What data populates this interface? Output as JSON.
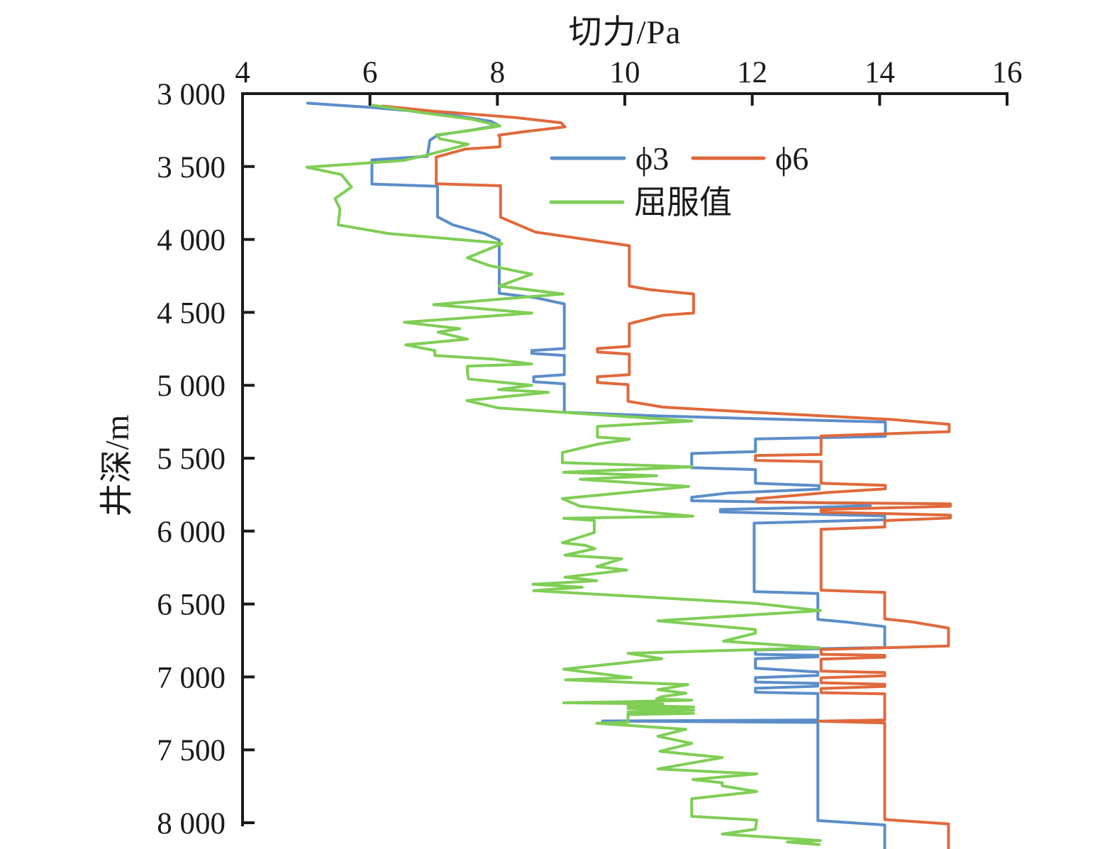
{
  "figure": {
    "title": "切力/Pa",
    "ylabel": "井深/m",
    "background": "#ffffff",
    "axis_color": "#1a1a1a"
  },
  "legend": {
    "items": [
      {
        "label": "ϕ3",
        "color": "#5B8EC9"
      },
      {
        "label": "ϕ6",
        "color": "#E0693C"
      },
      {
        "label": "屈服值",
        "color": "#7FCE55"
      }
    ]
  },
  "chart_data": {
    "type": "line",
    "title": "切力/Pa",
    "xlabel": "切力/Pa",
    "ylabel": "井深/m",
    "xlim": [
      4,
      16
    ],
    "ylim": [
      3000,
      8200
    ],
    "x_axis_position": "top",
    "y_inverted": true,
    "grid": false,
    "legend_position": "inside-top",
    "x_ticks": {
      "values": [
        4,
        6,
        8,
        10,
        12,
        14,
        16
      ],
      "labels": [
        "4",
        "6",
        "8",
        "10",
        "12",
        "14",
        "16"
      ]
    },
    "y_ticks": {
      "values": [
        3000,
        3500,
        4000,
        4500,
        5000,
        5500,
        6000,
        6500,
        7000,
        7500,
        8000
      ],
      "labels": [
        "3 000",
        "3 500",
        "4 000",
        "4 500",
        "5 000",
        "5 500",
        "6 000",
        "6 500",
        "7 000",
        "7 500",
        "8 000"
      ]
    },
    "series": [
      {
        "name": "ϕ3",
        "color": "#5B8EC9",
        "points_format": "[depth_m, shear_Pa]",
        "points": [
          [
            3065,
            5.02
          ],
          [
            3080,
            5.5
          ],
          [
            3095,
            6.03
          ],
          [
            3140,
            7.2
          ],
          [
            3190,
            7.9
          ],
          [
            3218,
            8.02
          ],
          [
            3250,
            7.6
          ],
          [
            3285,
            7.06
          ],
          [
            3320,
            6.94
          ],
          [
            3430,
            6.9
          ],
          [
            3455,
            6.03
          ],
          [
            3620,
            6.03
          ],
          [
            3635,
            7.06
          ],
          [
            3845,
            7.06
          ],
          [
            3900,
            7.3
          ],
          [
            3960,
            7.8
          ],
          [
            4005,
            8.03
          ],
          [
            4369,
            8.03
          ],
          [
            4400,
            8.6
          ],
          [
            4442,
            9.05
          ],
          [
            4748,
            9.05
          ],
          [
            4762,
            8.54
          ],
          [
            4781,
            8.54
          ],
          [
            4795,
            9.05
          ],
          [
            4927,
            9.05
          ],
          [
            4942,
            8.57
          ],
          [
            4976,
            8.57
          ],
          [
            4990,
            9.05
          ],
          [
            5185,
            9.05
          ],
          [
            5210,
            10.5
          ],
          [
            5240,
            13.0
          ],
          [
            5252,
            14.09
          ],
          [
            5350,
            14.09
          ],
          [
            5368,
            12.05
          ],
          [
            5455,
            12.05
          ],
          [
            5468,
            11.05
          ],
          [
            5565,
            11.05
          ],
          [
            5578,
            12.05
          ],
          [
            5672,
            12.05
          ],
          [
            5688,
            13.05
          ],
          [
            5712,
            13.05
          ],
          [
            5740,
            11.6
          ],
          [
            5768,
            11.05
          ],
          [
            5792,
            11.05
          ],
          [
            5812,
            13.85
          ],
          [
            5828,
            13.85
          ],
          [
            5852,
            11.5
          ],
          [
            5868,
            11.5
          ],
          [
            5896,
            14.08
          ],
          [
            5922,
            14.08
          ],
          [
            5945,
            12.03
          ],
          [
            6415,
            12.03
          ],
          [
            6428,
            13.03
          ],
          [
            6606,
            13.03
          ],
          [
            6625,
            13.5
          ],
          [
            6655,
            14.08
          ],
          [
            6798,
            14.08
          ],
          [
            6815,
            12.05
          ],
          [
            6845,
            12.05
          ],
          [
            6852,
            13.03
          ],
          [
            6862,
            13.03
          ],
          [
            6875,
            12.05
          ],
          [
            6940,
            12.05
          ],
          [
            6966,
            13.03
          ],
          [
            6990,
            13.03
          ],
          [
            7005,
            12.05
          ],
          [
            7035,
            12.05
          ],
          [
            7044,
            13.03
          ],
          [
            7063,
            13.03
          ],
          [
            7078,
            12.05
          ],
          [
            7105,
            12.05
          ],
          [
            7114,
            13.03
          ],
          [
            7140,
            13.03
          ],
          [
            7295,
            13.03
          ],
          [
            7302,
            9.65
          ],
          [
            7312,
            13.03
          ],
          [
            7985,
            13.03
          ],
          [
            8015,
            14.08
          ],
          [
            8185,
            14.08
          ]
        ]
      },
      {
        "name": "ϕ6",
        "color": "#E0693C",
        "points_format": "[depth_m, shear_Pa]",
        "points": [
          [
            3085,
            6.2
          ],
          [
            3120,
            7.0
          ],
          [
            3165,
            8.3
          ],
          [
            3200,
            9.0
          ],
          [
            3228,
            9.06
          ],
          [
            3262,
            8.4
          ],
          [
            3285,
            8.02
          ],
          [
            3300,
            8.04
          ],
          [
            3365,
            8.04
          ],
          [
            3380,
            7.5
          ],
          [
            3435,
            7.04
          ],
          [
            3618,
            7.04
          ],
          [
            3632,
            8.05
          ],
          [
            3848,
            8.05
          ],
          [
            3950,
            8.6
          ],
          [
            4043,
            10.07
          ],
          [
            4320,
            10.07
          ],
          [
            4345,
            10.4
          ],
          [
            4374,
            11.08
          ],
          [
            4505,
            11.08
          ],
          [
            4520,
            10.6
          ],
          [
            4578,
            10.07
          ],
          [
            4733,
            10.07
          ],
          [
            4748,
            9.57
          ],
          [
            4772,
            9.57
          ],
          [
            4786,
            10.07
          ],
          [
            4927,
            10.07
          ],
          [
            4942,
            9.57
          ],
          [
            4981,
            9.57
          ],
          [
            4995,
            10.05
          ],
          [
            5110,
            10.05
          ],
          [
            5150,
            10.6
          ],
          [
            5185,
            12.0
          ],
          [
            5235,
            14.2
          ],
          [
            5268,
            15.09
          ],
          [
            5318,
            15.09
          ],
          [
            5348,
            13.08
          ],
          [
            5474,
            13.08
          ],
          [
            5482,
            12.05
          ],
          [
            5515,
            12.05
          ],
          [
            5524,
            13.08
          ],
          [
            5672,
            13.08
          ],
          [
            5686,
            14.09
          ],
          [
            5710,
            14.09
          ],
          [
            5735,
            13.2
          ],
          [
            5778,
            12.07
          ],
          [
            5800,
            12.07
          ],
          [
            5813,
            15.11
          ],
          [
            5830,
            15.11
          ],
          [
            5852,
            13.08
          ],
          [
            5870,
            13.08
          ],
          [
            5890,
            15.11
          ],
          [
            5910,
            15.11
          ],
          [
            5928,
            14.08
          ],
          [
            5972,
            14.08
          ],
          [
            5988,
            13.08
          ],
          [
            6405,
            13.08
          ],
          [
            6420,
            14.08
          ],
          [
            6602,
            14.08
          ],
          [
            6622,
            14.5
          ],
          [
            6665,
            15.08
          ],
          [
            6788,
            15.08
          ],
          [
            6812,
            13.08
          ],
          [
            6845,
            13.08
          ],
          [
            6852,
            14.08
          ],
          [
            6865,
            14.08
          ],
          [
            6878,
            13.08
          ],
          [
            6960,
            13.08
          ],
          [
            6970,
            14.08
          ],
          [
            6992,
            14.08
          ],
          [
            7006,
            13.08
          ],
          [
            7040,
            13.08
          ],
          [
            7050,
            14.08
          ],
          [
            7065,
            14.08
          ],
          [
            7080,
            13.08
          ],
          [
            7108,
            13.08
          ],
          [
            7116,
            14.08
          ],
          [
            7140,
            14.08
          ],
          [
            7295,
            14.08
          ],
          [
            7303,
            13.05
          ],
          [
            7315,
            14.08
          ],
          [
            7978,
            14.08
          ],
          [
            8008,
            15.08
          ],
          [
            8188,
            15.08
          ]
        ]
      },
      {
        "name": "屈服值",
        "color": "#7FCE55",
        "points_format": "[depth_m, shear_Pa]",
        "points": [
          [
            3080,
            6.05
          ],
          [
            3130,
            6.8
          ],
          [
            3175,
            7.6
          ],
          [
            3222,
            8.04
          ],
          [
            3258,
            7.5
          ],
          [
            3283,
            7.04
          ],
          [
            3310,
            7.1
          ],
          [
            3348,
            7.54
          ],
          [
            3420,
            6.9
          ],
          [
            3458,
            6.53
          ],
          [
            3505,
            5.01
          ],
          [
            3555,
            5.55
          ],
          [
            3640,
            5.71
          ],
          [
            3720,
            5.45
          ],
          [
            3790,
            5.53
          ],
          [
            3900,
            5.5
          ],
          [
            3960,
            6.3
          ],
          [
            4025,
            8.05
          ],
          [
            4029,
            8.07
          ],
          [
            4126,
            7.53
          ],
          [
            4180,
            7.88
          ],
          [
            4238,
            8.54
          ],
          [
            4320,
            8.03
          ],
          [
            4374,
            9.03
          ],
          [
            4447,
            7.0
          ],
          [
            4505,
            8.54
          ],
          [
            4568,
            6.54
          ],
          [
            4612,
            7.41
          ],
          [
            4636,
            7.07
          ],
          [
            4684,
            7.53
          ],
          [
            4723,
            6.56
          ],
          [
            4762,
            7.02
          ],
          [
            4796,
            7.02
          ],
          [
            4820,
            7.93
          ],
          [
            4854,
            8.54
          ],
          [
            4869,
            7.53
          ],
          [
            4917,
            7.53
          ],
          [
            4957,
            7.55
          ],
          [
            5000,
            8.54
          ],
          [
            5029,
            8.02
          ],
          [
            5048,
            8.8
          ],
          [
            5105,
            7.52
          ],
          [
            5155,
            8.01
          ],
          [
            5245,
            11.05
          ],
          [
            5282,
            9.57
          ],
          [
            5355,
            9.57
          ],
          [
            5370,
            10.07
          ],
          [
            5403,
            9.58
          ],
          [
            5461,
            9.02
          ],
          [
            5530,
            9.02
          ],
          [
            5560,
            11.05
          ],
          [
            5597,
            9.04
          ],
          [
            5620,
            10.5
          ],
          [
            5645,
            9.3
          ],
          [
            5694,
            11.0
          ],
          [
            5777,
            9.02
          ],
          [
            5830,
            9.3
          ],
          [
            5898,
            11.07
          ],
          [
            5912,
            9.04
          ],
          [
            5927,
            9.52
          ],
          [
            6010,
            9.52
          ],
          [
            6080,
            9.02
          ],
          [
            6098,
            9.38
          ],
          [
            6120,
            9.53
          ],
          [
            6165,
            9.06
          ],
          [
            6190,
            9.95
          ],
          [
            6243,
            9.56
          ],
          [
            6267,
            10.03
          ],
          [
            6316,
            9.06
          ],
          [
            6340,
            9.56
          ],
          [
            6365,
            8.56
          ],
          [
            6385,
            9.33
          ],
          [
            6408,
            8.57
          ],
          [
            6495,
            12.05
          ],
          [
            6545,
            13.07
          ],
          [
            6615,
            10.52
          ],
          [
            6675,
            12.05
          ],
          [
            6700,
            12.05
          ],
          [
            6755,
            11.55
          ],
          [
            6800,
            13.05
          ],
          [
            6838,
            10.05
          ],
          [
            6875,
            10.58
          ],
          [
            6947,
            9.04
          ],
          [
            7005,
            10.1
          ],
          [
            7020,
            9.07
          ],
          [
            7053,
            10.99
          ],
          [
            7087,
            10.52
          ],
          [
            7112,
            10.96
          ],
          [
            7136,
            10.57
          ],
          [
            7152,
            10.5
          ],
          [
            7160,
            11.05
          ],
          [
            7170,
            10.0
          ],
          [
            7177,
            9.04
          ],
          [
            7186,
            10.6
          ],
          [
            7196,
            10.05
          ],
          [
            7206,
            11.08
          ],
          [
            7216,
            10.05
          ],
          [
            7228,
            11.08
          ],
          [
            7240,
            10.05
          ],
          [
            7250,
            11.08
          ],
          [
            7258,
            10.05
          ],
          [
            7311,
            10.05
          ],
          [
            7318,
            9.56
          ],
          [
            7359,
            10.96
          ],
          [
            7407,
            10.52
          ],
          [
            7456,
            11.05
          ],
          [
            7510,
            10.55
          ],
          [
            7553,
            11.53
          ],
          [
            7631,
            10.52
          ],
          [
            7665,
            12.07
          ],
          [
            7704,
            11.07
          ],
          [
            7725,
            11.53
          ],
          [
            7747,
            11.53
          ],
          [
            7786,
            12.07
          ],
          [
            7835,
            11.05
          ],
          [
            7956,
            11.05
          ],
          [
            7981,
            12.07
          ],
          [
            8044,
            12.05
          ],
          [
            8078,
            11.53
          ],
          [
            8122,
            13.07
          ],
          [
            8132,
            12.55
          ],
          [
            8150,
            13.05
          ]
        ]
      }
    ]
  }
}
